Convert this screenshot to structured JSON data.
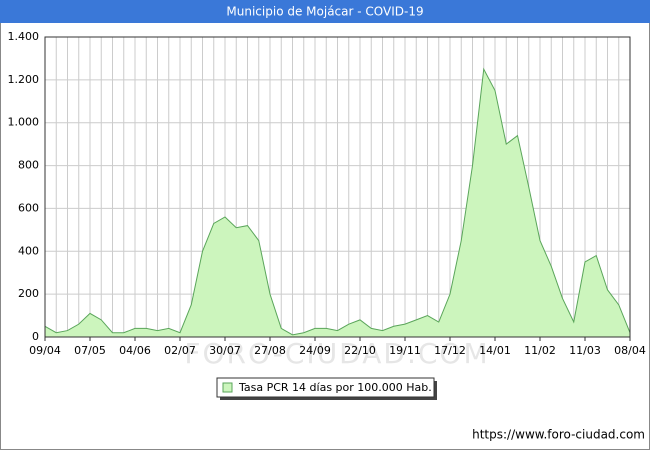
{
  "chart_data": {
    "type": "area",
    "title": "Municipio de Mojácar - COVID-19",
    "categories": [
      "09/04",
      null,
      null,
      null,
      "07/05",
      null,
      null,
      null,
      "04/06",
      null,
      null,
      null,
      "02/07",
      null,
      null,
      null,
      "30/07",
      null,
      null,
      null,
      "27/08",
      null,
      null,
      null,
      "24/09",
      null,
      null,
      null,
      "22/10",
      null,
      null,
      null,
      "19/11",
      null,
      null,
      null,
      "17/12",
      null,
      null,
      null,
      "14/01",
      null,
      null,
      null,
      "11/02",
      null,
      null,
      null,
      "11/03",
      null,
      null,
      null,
      "08/04"
    ],
    "series": [
      {
        "name": "Tasa PCR 14 días por 100.000 Hab.",
        "color": "#5aa55a",
        "values": [
          50,
          20,
          30,
          60,
          110,
          80,
          20,
          20,
          40,
          40,
          30,
          40,
          20,
          150,
          400,
          530,
          560,
          510,
          520,
          450,
          200,
          40,
          10,
          20,
          40,
          40,
          30,
          60,
          80,
          40,
          30,
          50,
          60,
          80,
          100,
          70,
          200,
          450,
          800,
          1250,
          1150,
          900,
          940,
          700,
          450,
          330,
          180,
          70,
          350,
          380,
          220,
          150,
          20
        ]
      }
    ],
    "ylim": [
      0,
      1400
    ],
    "yticks": [
      0,
      200,
      400,
      600,
      800,
      {
        "value": 1000,
        "label": "1.000"
      },
      {
        "value": 1200,
        "label": "1.200"
      },
      {
        "value": 1400,
        "label": "1.400"
      }
    ],
    "grid": true,
    "watermark": "FORO-CIUDAD.COM",
    "source": "https://www.foro-ciudad.com"
  }
}
